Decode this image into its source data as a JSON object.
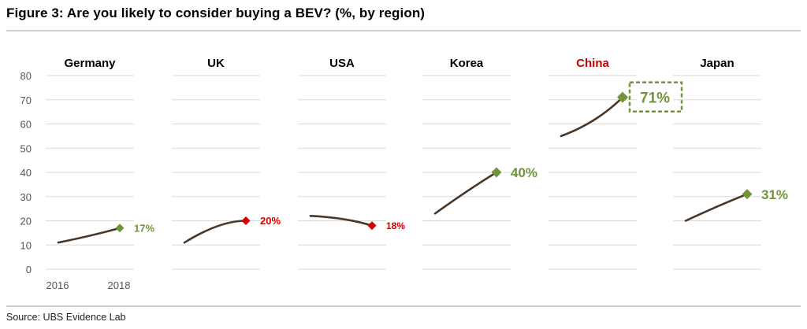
{
  "title": "Figure 3: Are you likely to consider buying a BEV? (%, by region)",
  "source": "Source:  UBS Evidence Lab",
  "colors": {
    "line": "#4a3728",
    "green": "#70943a",
    "red": "#d10000",
    "grid": "#d9d9d9",
    "title_highlight": "#c00000"
  },
  "chart_data": {
    "type": "line",
    "title": "Figure 3: Are you likely to consider buying a BEV? (%, by region)",
    "x": [
      "2016",
      "2018"
    ],
    "ylim": [
      0,
      80
    ],
    "yticks": [
      0,
      10,
      20,
      30,
      40,
      50,
      60,
      70,
      80
    ],
    "grid": true,
    "series": [
      {
        "name": "Germany",
        "values": [
          11,
          17
        ],
        "label": "17%",
        "marker_color": "green",
        "name_color": "normal",
        "boxed": false
      },
      {
        "name": "UK",
        "values": [
          11,
          20
        ],
        "label": "20%",
        "marker_color": "red",
        "name_color": "normal",
        "boxed": false
      },
      {
        "name": "USA",
        "values": [
          22,
          18
        ],
        "label": "18%",
        "marker_color": "red",
        "name_color": "normal",
        "boxed": false
      },
      {
        "name": "Korea",
        "values": [
          23,
          40
        ],
        "label": "40%",
        "marker_color": "green",
        "name_color": "normal",
        "boxed": false
      },
      {
        "name": "China",
        "values": [
          55,
          71
        ],
        "label": "71%",
        "marker_color": "green",
        "name_color": "highlight",
        "boxed": true
      },
      {
        "name": "Japan",
        "values": [
          20,
          31
        ],
        "label": "31%",
        "marker_color": "green",
        "name_color": "normal",
        "boxed": false
      }
    ]
  }
}
